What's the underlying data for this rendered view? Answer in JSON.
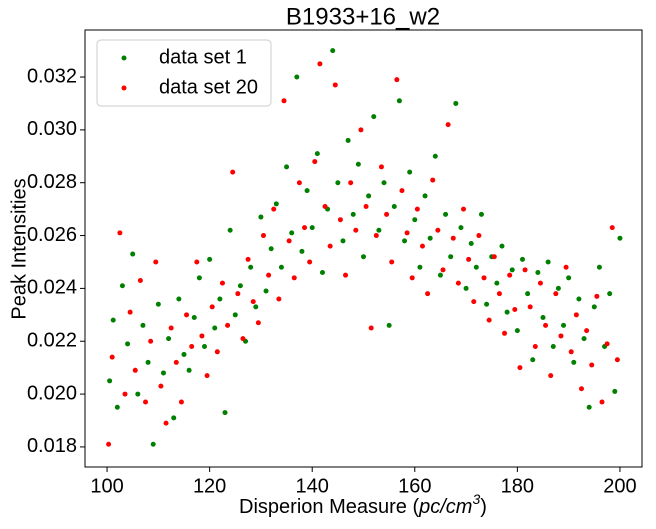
{
  "chart_data": {
    "type": "scatter",
    "title": "B1933+16_w2",
    "xlabel_parts": [
      "Disperion Measure (",
      "pc/cm",
      "3",
      ")"
    ],
    "ylabel": "Peak Intensities",
    "xlim": [
      95.7,
      204.3
    ],
    "ylim": [
      0.01724,
      0.03378
    ],
    "xticks": [
      100,
      120,
      140,
      160,
      180,
      200
    ],
    "yticks": [
      0.018,
      {
        "value": 0.02,
        "label": "0.020"
      },
      0.022,
      0.024,
      0.026,
      0.028,
      {
        "value": 0.03,
        "label": "0.030"
      },
      0.032
    ],
    "grid": false,
    "legend": "upper left",
    "series": [
      {
        "name": "data set 1",
        "color": "#008000",
        "x": [
          100.5,
          101.2,
          102,
          103,
          104,
          105,
          106,
          107,
          108,
          109,
          110,
          111,
          112,
          113,
          114,
          115,
          116,
          117,
          118,
          119,
          120,
          121,
          122,
          123,
          124,
          125,
          126,
          127,
          128,
          129,
          130,
          131,
          132,
          133,
          134,
          135,
          136,
          137,
          138,
          139,
          140,
          141,
          142,
          143,
          144,
          145,
          146,
          147,
          148,
          149,
          150,
          151,
          152,
          153,
          154,
          155,
          156,
          157,
          158,
          159,
          160,
          161,
          162,
          163,
          164,
          165,
          166,
          167,
          168,
          169,
          170,
          171,
          172,
          173,
          174,
          175,
          176,
          177,
          178,
          179,
          180,
          181,
          182,
          183,
          184,
          185,
          186,
          187,
          188,
          189,
          190,
          191,
          192,
          193,
          194,
          195,
          196,
          197,
          198,
          199,
          200
        ],
        "values": [
          0.0205,
          0.0228,
          0.0195,
          0.0241,
          0.0219,
          0.0253,
          0.02,
          0.0226,
          0.0212,
          0.0181,
          0.0234,
          0.0208,
          0.0221,
          0.0191,
          0.0236,
          0.0215,
          0.0209,
          0.0229,
          0.0244,
          0.0218,
          0.0251,
          0.0225,
          0.0236,
          0.0193,
          0.0262,
          0.023,
          0.0241,
          0.022,
          0.0248,
          0.0233,
          0.0267,
          0.0239,
          0.0255,
          0.0272,
          0.0248,
          0.0286,
          0.0261,
          0.032,
          0.0254,
          0.0277,
          0.0263,
          0.0291,
          0.0246,
          0.027,
          0.033,
          0.028,
          0.0258,
          0.0296,
          0.0268,
          0.0287,
          0.0252,
          0.0275,
          0.0305,
          0.0262,
          0.028,
          0.0226,
          0.0271,
          0.0311,
          0.0258,
          0.0284,
          0.0266,
          0.0248,
          0.0275,
          0.0259,
          0.029,
          0.0245,
          0.0268,
          0.0252,
          0.031,
          0.0263,
          0.024,
          0.0257,
          0.0248,
          0.0268,
          0.0234,
          0.0252,
          0.0242,
          0.0256,
          0.0231,
          0.0247,
          0.0224,
          0.0251,
          0.0238,
          0.0213,
          0.0246,
          0.0229,
          0.025,
          0.0218,
          0.024,
          0.0226,
          0.0244,
          0.0212,
          0.0236,
          0.0221,
          0.0195,
          0.0233,
          0.0248,
          0.0218,
          0.0238,
          0.0201,
          0.0259
        ]
      },
      {
        "name": "data set 20",
        "color": "#ff0000",
        "x": [
          100.3,
          101,
          102.5,
          103.5,
          104.5,
          105.5,
          106.5,
          107.5,
          108.5,
          109.5,
          110.5,
          111.5,
          112.5,
          113.5,
          114.5,
          115.5,
          116.5,
          117.5,
          118.5,
          119.5,
          120.5,
          121.5,
          122.5,
          123.5,
          124.5,
          125.5,
          126.5,
          127.5,
          128.5,
          129.5,
          130.5,
          131.5,
          132.5,
          133.5,
          134.5,
          135.5,
          136.5,
          137.5,
          138.5,
          139.5,
          140.5,
          141.5,
          142.5,
          143.5,
          144.5,
          145.5,
          146.5,
          147.5,
          148.5,
          149.5,
          150.5,
          151.5,
          152.5,
          153.5,
          154.5,
          155.5,
          156.5,
          157.5,
          158.5,
          159.5,
          160.5,
          161.5,
          162.5,
          163.5,
          164.5,
          165.5,
          166.5,
          167.5,
          168.5,
          169.5,
          170.5,
          171.5,
          172.5,
          173.5,
          174.5,
          175.5,
          176.5,
          177.5,
          178.5,
          179.5,
          180.5,
          181.5,
          182.5,
          183.5,
          184.5,
          185.5,
          186.5,
          187.5,
          188.5,
          189.5,
          190.5,
          191.5,
          192.5,
          193.5,
          194.5,
          195.5,
          196.5,
          197.5,
          198.5,
          199.5
        ],
        "values": [
          0.0181,
          0.0214,
          0.0261,
          0.02,
          0.0231,
          0.0209,
          0.0243,
          0.0197,
          0.022,
          0.025,
          0.0203,
          0.0189,
          0.0225,
          0.0212,
          0.0197,
          0.023,
          0.0218,
          0.025,
          0.0222,
          0.0207,
          0.0233,
          0.0216,
          0.0242,
          0.0226,
          0.0284,
          0.0238,
          0.0221,
          0.0251,
          0.0235,
          0.0227,
          0.026,
          0.0245,
          0.027,
          0.0236,
          0.0311,
          0.0258,
          0.0244,
          0.028,
          0.0263,
          0.025,
          0.0288,
          0.0325,
          0.0271,
          0.0256,
          0.0317,
          0.0266,
          0.0245,
          0.028,
          0.0262,
          0.03,
          0.0271,
          0.0225,
          0.026,
          0.0286,
          0.0268,
          0.025,
          0.0319,
          0.0277,
          0.0261,
          0.0244,
          0.027,
          0.0256,
          0.0238,
          0.0281,
          0.0262,
          0.0247,
          0.0302,
          0.0259,
          0.0242,
          0.027,
          0.0251,
          0.0235,
          0.026,
          0.0244,
          0.0228,
          0.0252,
          0.0238,
          0.0223,
          0.0245,
          0.0232,
          0.021,
          0.0247,
          0.0233,
          0.0218,
          0.0242,
          0.0226,
          0.0207,
          0.0238,
          0.0222,
          0.0248,
          0.0216,
          0.023,
          0.0202,
          0.0224,
          0.0211,
          0.0237,
          0.0197,
          0.0219,
          0.0263,
          0.0213
        ]
      }
    ]
  }
}
